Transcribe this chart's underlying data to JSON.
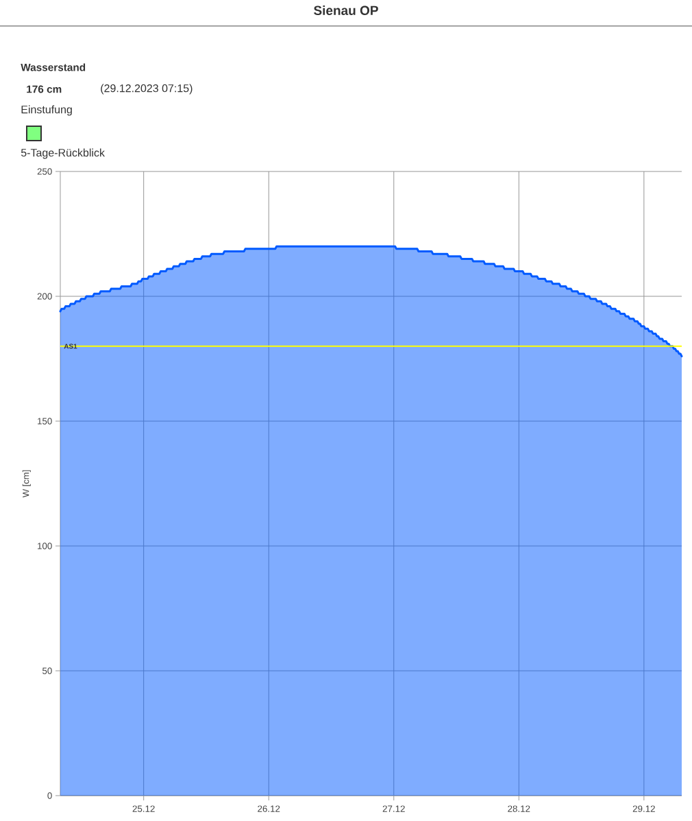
{
  "chart_data": {
    "type": "area",
    "title": "Sienau OP",
    "annotations": [
      "Wasserstand",
      "176 cm",
      "(29.12.2023 07:15)",
      "Einstufung",
      "5-Tage-Rückblick"
    ],
    "ylabel": "W [cm]",
    "color": "#005aff",
    "x": [
      "2023-12-24T08:00",
      "2023-12-24T08:15",
      "2023-12-24T08:45",
      "2023-12-24T09:00",
      "2023-12-24T09:45",
      "2023-12-24T10:00",
      "2023-12-24T10:45",
      "2023-12-24T11:00",
      "2023-12-24T11:45",
      "2023-12-24T12:00",
      "2023-12-24T12:45",
      "2023-12-24T13:00",
      "2023-12-24T14:15",
      "2023-12-24T14:30",
      "2023-12-24T15:30",
      "2023-12-24T15:45",
      "2023-12-24T17:30",
      "2023-12-24T17:45",
      "2023-12-24T19:30",
      "2023-12-24T19:45",
      "2023-12-24T21:30",
      "2023-12-24T21:45",
      "2023-12-24T22:45",
      "2023-12-24T23:00",
      "2023-12-24T23:30",
      "2023-12-24T23:45",
      "2023-12-25T00:45",
      "2023-12-25T01:00",
      "2023-12-25T01:45",
      "2023-12-25T02:00",
      "2023-12-25T03:00",
      "2023-12-25T03:15",
      "2023-12-25T04:15",
      "2023-12-25T04:30",
      "2023-12-25T05:30",
      "2023-12-25T05:45",
      "2023-12-25T06:45",
      "2023-12-25T07:00",
      "2023-12-25T08:00",
      "2023-12-25T08:15",
      "2023-12-25T09:30",
      "2023-12-25T09:45",
      "2023-12-25T11:00",
      "2023-12-25T11:15",
      "2023-12-25T12:45",
      "2023-12-25T13:00",
      "2023-12-25T15:15",
      "2023-12-25T15:30",
      "2023-12-25T19:15",
      "2023-12-25T19:30",
      "2023-12-26T01:15",
      "2023-12-26T01:30",
      "2023-12-27T00:15",
      "2023-12-27T00:30",
      "2023-12-27T04:30",
      "2023-12-27T04:45",
      "2023-12-27T07:15",
      "2023-12-27T07:30",
      "2023-12-27T10:15",
      "2023-12-27T10:30",
      "2023-12-27T12:45",
      "2023-12-27T13:00",
      "2023-12-27T15:00",
      "2023-12-27T15:15",
      "2023-12-27T17:15",
      "2023-12-27T17:30",
      "2023-12-27T19:15",
      "2023-12-27T19:30",
      "2023-12-27T21:00",
      "2023-12-27T21:15",
      "2023-12-27T23:00",
      "2023-12-27T23:15",
      "2023-12-28T00:45",
      "2023-12-28T01:00",
      "2023-12-28T02:15",
      "2023-12-28T02:30",
      "2023-12-28T03:30",
      "2023-12-28T03:45",
      "2023-12-28T05:00",
      "2023-12-28T05:15",
      "2023-12-28T06:15",
      "2023-12-28T06:30",
      "2023-12-28T07:45",
      "2023-12-28T08:00",
      "2023-12-28T09:00",
      "2023-12-28T09:15",
      "2023-12-28T10:00",
      "2023-12-28T10:15",
      "2023-12-28T11:15",
      "2023-12-28T11:30",
      "2023-12-28T12:30",
      "2023-12-28T12:45",
      "2023-12-28T13:30",
      "2023-12-28T13:45",
      "2023-12-28T14:45",
      "2023-12-28T15:00",
      "2023-12-28T15:45",
      "2023-12-28T16:00",
      "2023-12-28T16:45",
      "2023-12-28T17:00",
      "2023-12-28T17:30",
      "2023-12-28T17:45",
      "2023-12-28T18:30",
      "2023-12-28T18:45",
      "2023-12-28T19:15",
      "2023-12-28T19:30",
      "2023-12-28T20:15",
      "2023-12-28T20:30",
      "2023-12-28T21:00",
      "2023-12-28T21:15",
      "2023-12-28T22:00",
      "2023-12-28T22:15",
      "2023-12-28T22:45",
      "2023-12-28T23:00",
      "2023-12-28T23:15",
      "2023-12-28T23:30",
      "2023-12-29T00:00",
      "2023-12-29T00:15",
      "2023-12-29T00:45",
      "2023-12-29T01:00",
      "2023-12-29T01:30",
      "2023-12-29T01:45",
      "2023-12-29T02:15",
      "2023-12-29T02:30",
      "2023-12-29T02:45",
      "2023-12-29T03:00",
      "2023-12-29T03:30",
      "2023-12-29T03:45",
      "2023-12-29T04:15",
      "2023-12-29T04:30",
      "2023-12-29T04:45",
      "2023-12-29T05:00",
      "2023-12-29T05:30",
      "2023-12-29T05:45",
      "2023-12-29T06:00",
      "2023-12-29T06:15",
      "2023-12-29T06:30",
      "2023-12-29T06:45",
      "2023-12-29T07:00",
      "2023-12-29T07:15"
    ],
    "values": [
      194,
      195,
      195,
      196,
      196,
      197,
      197,
      198,
      198,
      199,
      199,
      200,
      200,
      201,
      201,
      202,
      202,
      203,
      203,
      204,
      204,
      205,
      205,
      206,
      206,
      207,
      207,
      208,
      208,
      209,
      209,
      210,
      210,
      211,
      211,
      212,
      212,
      213,
      213,
      214,
      214,
      215,
      215,
      216,
      216,
      217,
      217,
      218,
      218,
      219,
      219,
      220,
      220,
      219,
      219,
      218,
      218,
      217,
      217,
      216,
      216,
      215,
      215,
      214,
      214,
      213,
      213,
      212,
      212,
      211,
      211,
      210,
      210,
      209,
      209,
      208,
      208,
      207,
      207,
      206,
      206,
      205,
      205,
      204,
      204,
      203,
      203,
      202,
      202,
      201,
      201,
      200,
      200,
      199,
      199,
      198,
      198,
      197,
      197,
      196,
      196,
      195,
      195,
      194,
      194,
      193,
      193,
      192,
      192,
      191,
      191,
      190,
      190,
      189,
      189,
      188,
      188,
      187,
      187,
      186,
      186,
      185,
      185,
      184,
      184,
      183,
      183,
      182,
      182,
      181,
      181,
      180,
      180,
      179,
      179,
      178,
      178,
      177,
      177,
      176
    ],
    "xlim": [
      "2023-12-24T08:00",
      "2023-12-29T07:15"
    ],
    "xticks": [
      {
        "value": "2023-12-25",
        "label": "25.12"
      },
      {
        "value": "2023-12-26",
        "label": "26.12"
      },
      {
        "value": "2023-12-27",
        "label": "27.12"
      },
      {
        "value": "2023-12-28",
        "label": "28.12"
      },
      {
        "value": "2023-12-29",
        "label": "29.12"
      }
    ],
    "ylim": [
      0,
      250
    ],
    "yticks": [
      0,
      50,
      100,
      150,
      200,
      250
    ],
    "grid": true,
    "ref_lines": [
      {
        "axis": "y",
        "value": 180,
        "label": "AS1",
        "color": "#ffff00"
      }
    ]
  }
}
